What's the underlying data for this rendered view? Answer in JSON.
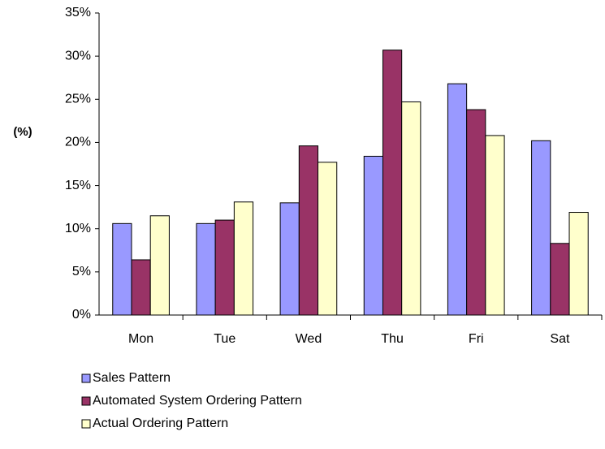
{
  "chart_data": {
    "type": "bar",
    "y_label": "(%)",
    "categories": [
      "Mon",
      "Tue",
      "Wed",
      "Thu",
      "Fri",
      "Sat"
    ],
    "series": [
      {
        "name": "Sales Pattern",
        "color": "#9999ff",
        "values": [
          10.6,
          10.6,
          13.0,
          18.4,
          26.8,
          20.2
        ]
      },
      {
        "name": "Automated System Ordering Pattern",
        "color": "#993366",
        "values": [
          6.4,
          11.0,
          19.6,
          30.7,
          23.8,
          8.3
        ]
      },
      {
        "name": "Actual Ordering Pattern",
        "color": "#ffffcc",
        "values": [
          11.5,
          13.1,
          17.7,
          24.7,
          20.8,
          11.9
        ]
      }
    ],
    "ylim": [
      0,
      35
    ],
    "yticks": [
      {
        "value": 0,
        "label": "0%"
      },
      {
        "value": 5,
        "label": "5%"
      },
      {
        "value": 10,
        "label": "10%"
      },
      {
        "value": 15,
        "label": "15%"
      },
      {
        "value": 20,
        "label": "20%"
      },
      {
        "value": 25,
        "label": "25%"
      },
      {
        "value": 30,
        "label": "30%"
      },
      {
        "value": 35,
        "label": "35%"
      }
    ],
    "grid": false,
    "legend": "bottom-left"
  }
}
